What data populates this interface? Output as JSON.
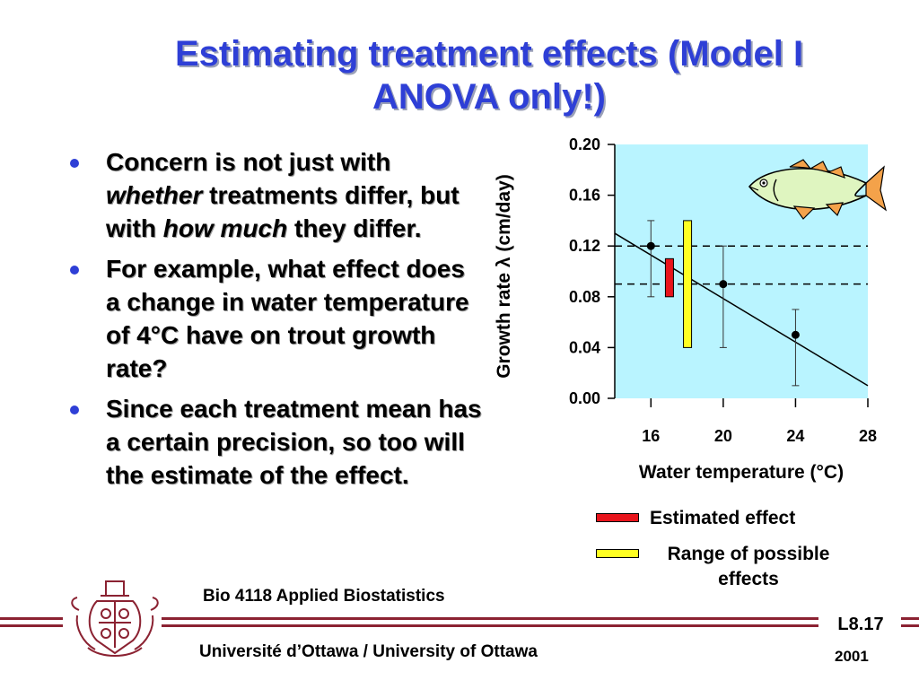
{
  "title": "Estimating treatment effects (Model I ANOVA only!)",
  "bullets": [
    {
      "parts": [
        {
          "text": "Concern is not just with ",
          "italic": false
        },
        {
          "text": "whether",
          "italic": true
        },
        {
          "text": " treatments differ, but with ",
          "italic": false
        },
        {
          "text": "how much",
          "italic": true
        },
        {
          "text": " they differ.",
          "italic": false
        }
      ]
    },
    {
      "parts": [
        {
          "text": "For example, what effect does a change in water temperature of 4°C have on trout growth rate?",
          "italic": false
        }
      ]
    },
    {
      "parts": [
        {
          "text": "Since each treatment mean has a certain precision, so too will the estimate of the effect.",
          "italic": false
        }
      ]
    }
  ],
  "chart_data": {
    "type": "scatter",
    "xlabel": "Water temperature (°C)",
    "ylabel": "Growth rate λ (cm/day)",
    "xlim": [
      14,
      28
    ],
    "ylim": [
      0.0,
      0.2
    ],
    "x_ticks": [
      "16",
      "20",
      "24",
      "28"
    ],
    "y_ticks": [
      "0.00",
      "0.04",
      "0.08",
      "0.12",
      "0.16",
      "0.20"
    ],
    "points": [
      {
        "x": 16,
        "y": 0.12,
        "err_low": 0.08,
        "err_high": 0.14
      },
      {
        "x": 20,
        "y": 0.09,
        "err_low": 0.04,
        "err_high": 0.12
      },
      {
        "x": 24,
        "y": 0.05,
        "err_low": 0.01,
        "err_high": 0.07
      }
    ],
    "regression_line": {
      "x": [
        14,
        28
      ],
      "y": [
        0.13,
        0.01
      ]
    },
    "reference_lines_y": [
      0.12,
      0.09
    ],
    "estimated_effect": {
      "x": 17,
      "y_low": 0.08,
      "y_high": 0.11,
      "color": "#e8141c"
    },
    "range_of_effects": {
      "x": 18,
      "y_low": 0.04,
      "y_high": 0.14,
      "color": "#ffff22"
    },
    "plot_background": "#b9f4ff",
    "legend": [
      {
        "label": "Estimated effect",
        "color": "#e8141c"
      },
      {
        "label": "Range of possible effects",
        "color": "#ffff22"
      }
    ]
  },
  "footer": {
    "course": "Bio 4118 Applied Biostatistics",
    "university": "Université d’Ottawa / University of Ottawa",
    "slide_number": "L8.17",
    "year": "2001"
  },
  "colors": {
    "title": "#2e3fd6",
    "accent": "#8b2232"
  },
  "icons": {
    "fish": "fish-icon",
    "crest": "university-crest"
  }
}
